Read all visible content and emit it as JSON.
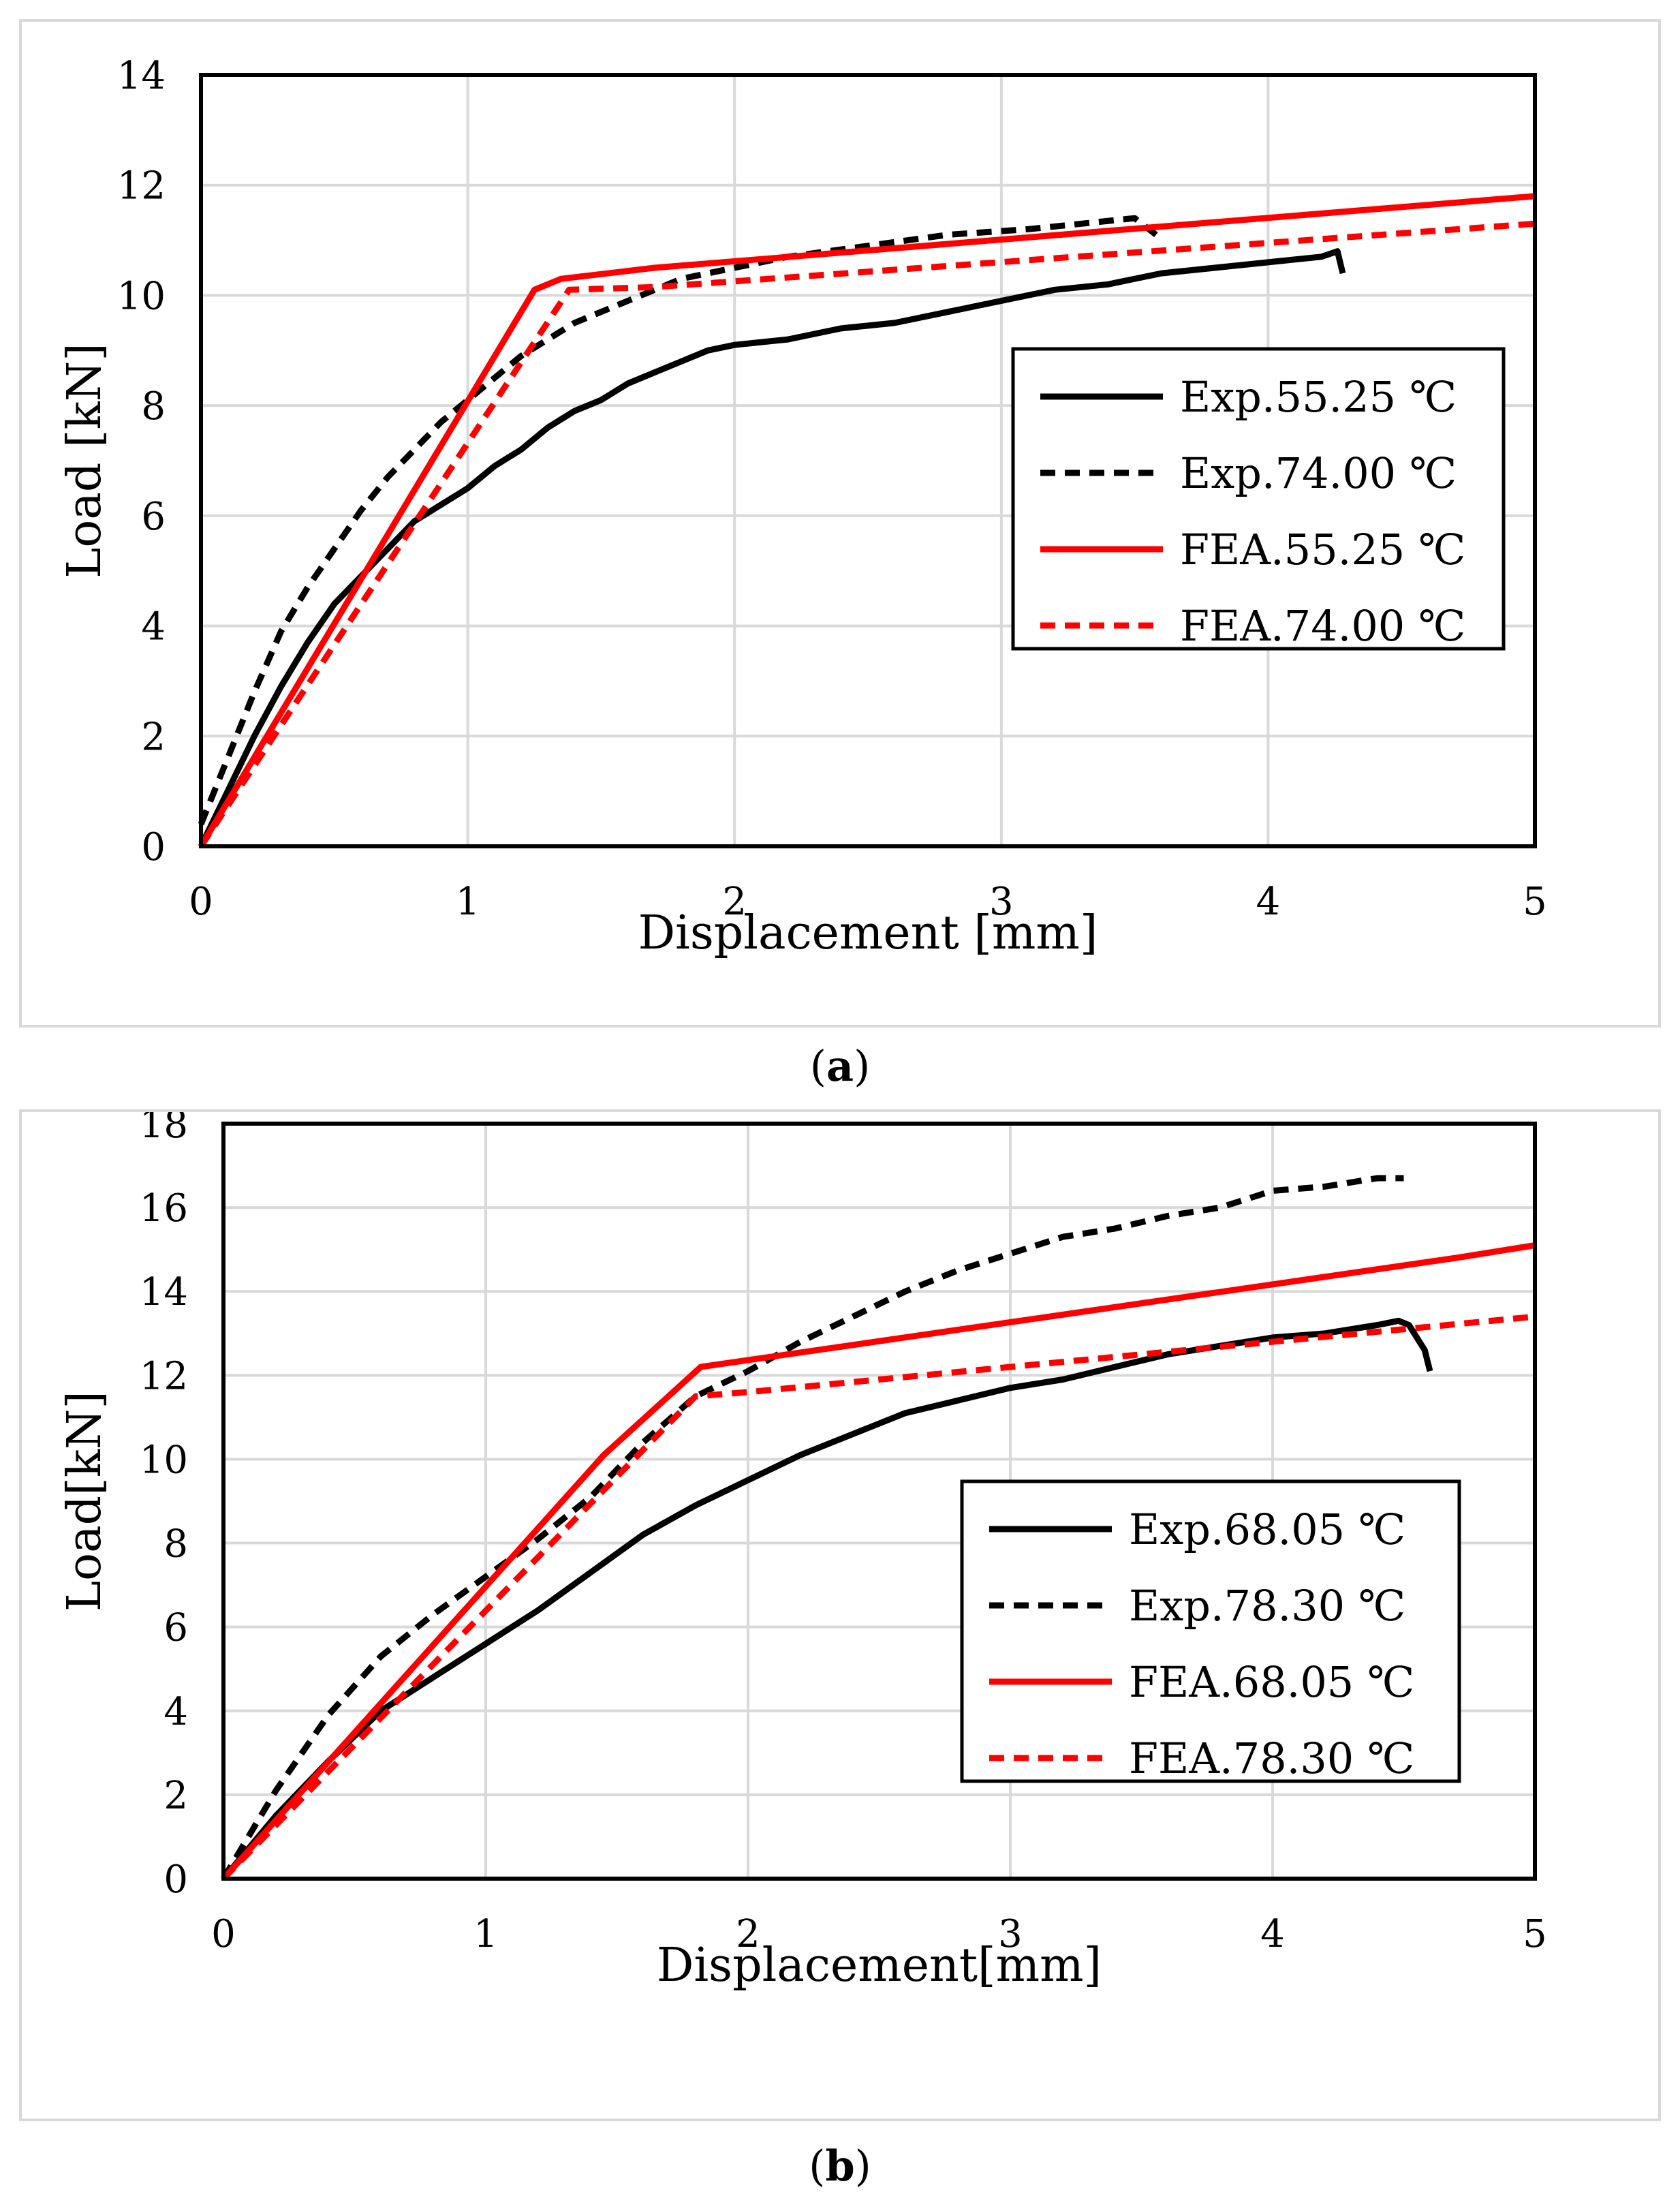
{
  "panels": [
    {
      "caption_label": "a",
      "chart_data": {
        "type": "line",
        "xlabel": "Displacement [mm]",
        "ylabel": "Load [kN]",
        "xlim": [
          0,
          5
        ],
        "ylim": [
          0,
          14
        ],
        "xticks": [
          0,
          1,
          2,
          3,
          4,
          5
        ],
        "yticks": [
          0,
          2,
          4,
          6,
          8,
          10,
          12,
          14
        ],
        "grid": true,
        "legend_position": "right-middle",
        "series": [
          {
            "name": "Exp.55.25 ℃",
            "color": "#000000",
            "style": "solid",
            "x": [
              0,
              0.1,
              0.2,
              0.3,
              0.4,
              0.5,
              0.6,
              0.7,
              0.8,
              0.9,
              1.0,
              1.1,
              1.2,
              1.3,
              1.4,
              1.5,
              1.6,
              1.7,
              1.8,
              1.9,
              2.0,
              2.2,
              2.4,
              2.6,
              2.8,
              3.0,
              3.2,
              3.4,
              3.6,
              3.8,
              4.0,
              4.2,
              4.26,
              4.28
            ],
            "y": [
              0,
              1.0,
              2.0,
              2.9,
              3.7,
              4.4,
              4.9,
              5.4,
              5.9,
              6.2,
              6.5,
              6.9,
              7.2,
              7.6,
              7.9,
              8.1,
              8.4,
              8.6,
              8.8,
              9.0,
              9.1,
              9.2,
              9.4,
              9.5,
              9.7,
              9.9,
              10.1,
              10.2,
              10.4,
              10.5,
              10.6,
              10.7,
              10.8,
              10.4
            ]
          },
          {
            "name": "Exp.74.00 ℃",
            "color": "#000000",
            "style": "dashed",
            "x": [
              0,
              0.1,
              0.2,
              0.3,
              0.4,
              0.5,
              0.6,
              0.7,
              0.8,
              0.9,
              1.0,
              1.2,
              1.4,
              1.6,
              1.8,
              2.0,
              2.2,
              2.5,
              2.8,
              3.1,
              3.3,
              3.5,
              3.58
            ],
            "y": [
              0.4,
              1.6,
              2.8,
              3.9,
              4.7,
              5.4,
              6.1,
              6.7,
              7.2,
              7.7,
              8.1,
              8.9,
              9.5,
              9.9,
              10.3,
              10.5,
              10.7,
              10.9,
              11.1,
              11.2,
              11.3,
              11.4,
              11.1
            ]
          },
          {
            "name": "FEA.55.25 ℃",
            "color": "#ff0000",
            "style": "solid",
            "x": [
              0,
              1.25,
              1.35,
              1.7,
              5.0
            ],
            "y": [
              0,
              10.1,
              10.3,
              10.5,
              11.8
            ]
          },
          {
            "name": "FEA.74.00 ℃",
            "color": "#ff0000",
            "style": "dashed",
            "x": [
              0,
              1.38,
              1.7,
              5.0
            ],
            "y": [
              0,
              10.1,
              10.15,
              11.3
            ]
          }
        ]
      }
    },
    {
      "caption_label": "b",
      "chart_data": {
        "type": "line",
        "xlabel": "Displacement[mm]",
        "ylabel": "Load[kN]",
        "xlim": [
          0,
          5
        ],
        "ylim": [
          0,
          18
        ],
        "xticks": [
          0,
          1,
          2,
          3,
          4,
          5
        ],
        "yticks": [
          0,
          2,
          4,
          6,
          8,
          10,
          12,
          14,
          16,
          18
        ],
        "grid": true,
        "legend_position": "right-middle",
        "series": [
          {
            "name": "Exp.68.05 ℃",
            "color": "#000000",
            "style": "solid",
            "x": [
              0,
              0.2,
              0.4,
              0.6,
              0.8,
              1.0,
              1.2,
              1.4,
              1.6,
              1.8,
              2.0,
              2.2,
              2.4,
              2.6,
              2.8,
              3.0,
              3.2,
              3.4,
              3.6,
              3.8,
              4.0,
              4.2,
              4.4,
              4.48,
              4.52,
              4.58,
              4.6
            ],
            "y": [
              0,
              1.5,
              2.8,
              4.0,
              4.8,
              5.6,
              6.4,
              7.3,
              8.2,
              8.9,
              9.5,
              10.1,
              10.6,
              11.1,
              11.4,
              11.7,
              11.9,
              12.2,
              12.5,
              12.7,
              12.9,
              13.0,
              13.2,
              13.3,
              13.2,
              12.6,
              12.1
            ]
          },
          {
            "name": "Exp.78.30 ℃",
            "color": "#000000",
            "style": "dashed",
            "x": [
              0,
              0.2,
              0.4,
              0.6,
              0.8,
              1.0,
              1.2,
              1.4,
              1.6,
              1.8,
              2.0,
              2.2,
              2.4,
              2.6,
              2.8,
              3.0,
              3.2,
              3.4,
              3.6,
              3.8,
              4.0,
              4.2,
              4.4,
              4.5
            ],
            "y": [
              0,
              2.1,
              3.9,
              5.3,
              6.3,
              7.2,
              8.1,
              9.1,
              10.4,
              11.5,
              12.1,
              12.8,
              13.4,
              14.0,
              14.5,
              14.9,
              15.3,
              15.5,
              15.8,
              16.0,
              16.4,
              16.5,
              16.7,
              16.7
            ]
          },
          {
            "name": "FEA.68.05 ℃",
            "color": "#ff0000",
            "style": "solid",
            "x": [
              0,
              1.45,
              1.82,
              4.7,
              5.0
            ],
            "y": [
              0,
              10.1,
              12.2,
              14.8,
              15.1
            ]
          },
          {
            "name": "FEA.78.30 ℃",
            "color": "#ff0000",
            "style": "dashed",
            "x": [
              0,
              1.8,
              2.0,
              5.0
            ],
            "y": [
              0,
              11.5,
              11.6,
              13.4
            ]
          }
        ]
      }
    }
  ]
}
